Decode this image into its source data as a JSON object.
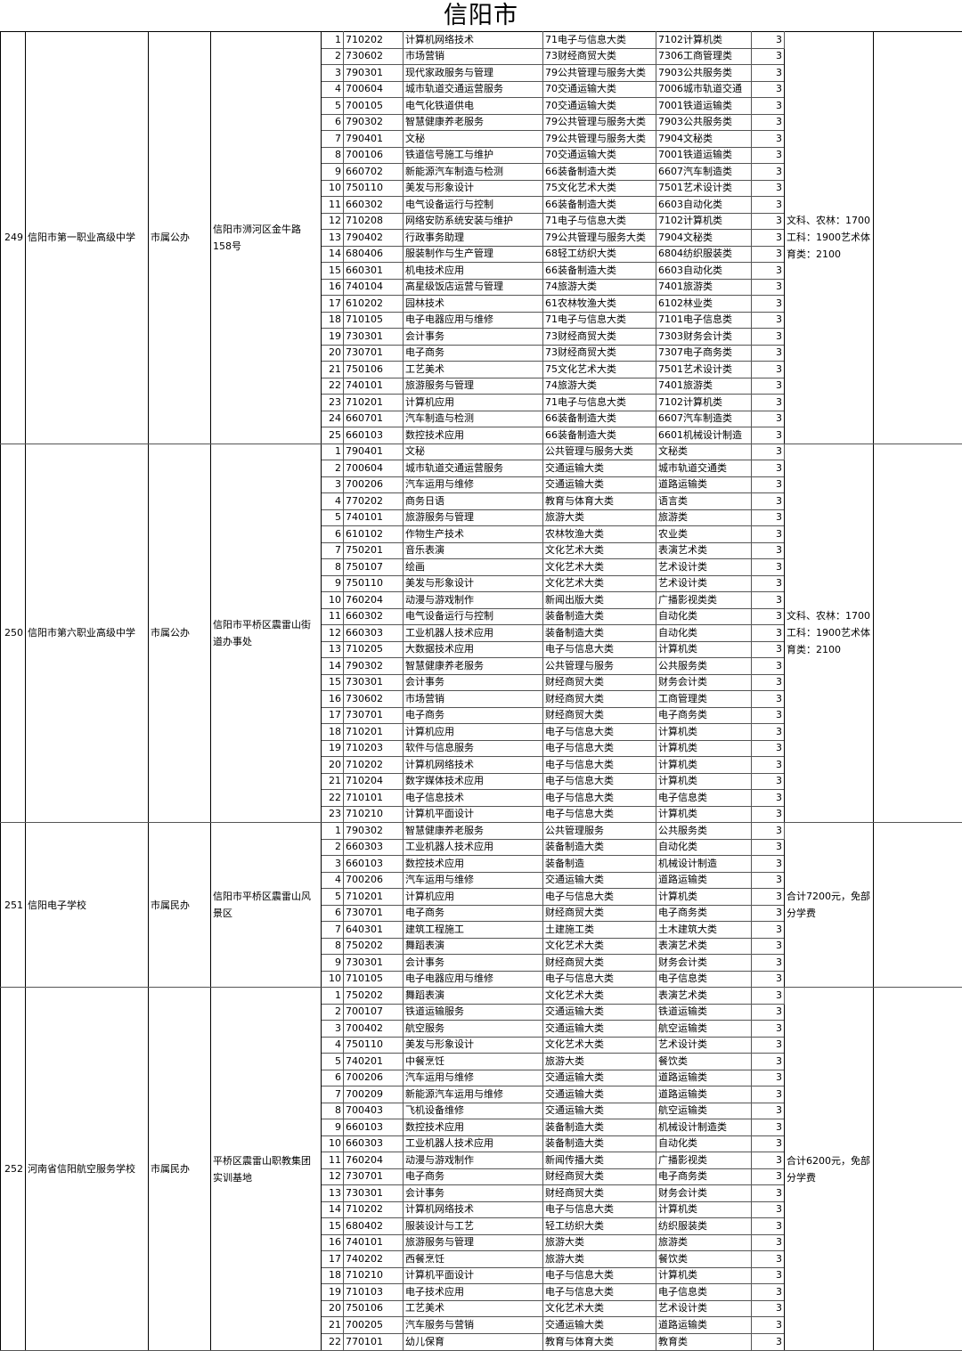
{
  "title": "信阳市",
  "schools": [
    {
      "no": "249",
      "name": "信阳市第一职业高级中学",
      "type": "市属公办",
      "address": "信阳市浉河区金牛路158号",
      "fee": "文科、农林：1700工科：1900艺术体育类：2100",
      "majors": [
        [
          "710202",
          "计算机网络技术",
          "71电子与信息大类",
          "7102计算机类",
          "3"
        ],
        [
          "730602",
          "市场营销",
          "73财经商贸大类",
          "7306工商管理类",
          "3"
        ],
        [
          "790301",
          "现代家政服务与管理",
          "79公共管理与服务大类",
          "7903公共服务类",
          "3"
        ],
        [
          "700604",
          "城市轨道交通运营服务",
          "70交通运输大类",
          "7006城市轨道交通",
          "3"
        ],
        [
          "700105",
          "电气化铁道供电",
          "70交通运输大类",
          "7001铁道运输类",
          "3"
        ],
        [
          "790302",
          "智慧健康养老服务",
          "79公共管理与服务大类",
          "7903公共服务类",
          "3"
        ],
        [
          "790401",
          "文秘",
          "79公共管理与服务大类",
          "7904文秘类",
          "3"
        ],
        [
          "700106",
          "铁道信号施工与维护",
          "70交通运输大类",
          "7001铁道运输类",
          "3"
        ],
        [
          "660702",
          "新能源汽车制造与检测",
          "66装备制造大类",
          "6607汽车制造类",
          "3"
        ],
        [
          "750110",
          "美发与形象设计",
          "75文化艺术大类",
          "7501艺术设计类",
          "3"
        ],
        [
          "660302",
          "电气设备运行与控制",
          "66装备制造大类",
          "6603自动化类",
          "3"
        ],
        [
          "710208",
          "网络安防系统安装与维护",
          "71电子与信息大类",
          "7102计算机类",
          "3"
        ],
        [
          "790402",
          "行政事务助理",
          "79公共管理与服务大类",
          "7904文秘类",
          "3"
        ],
        [
          "680406",
          "服装制作与生产管理",
          "68轻工纺织大类",
          "6804纺织服装类",
          "3"
        ],
        [
          "660301",
          "机电技术应用",
          "66装备制造大类",
          "6603自动化类",
          "3"
        ],
        [
          "740104",
          "高星级饭店运营与管理",
          "74旅游大类",
          "7401旅游类",
          "3"
        ],
        [
          "610202",
          "园林技术",
          "61农林牧渔大类",
          "6102林业类",
          "3"
        ],
        [
          "710105",
          "电子电器应用与维修",
          "71电子与信息大类",
          "7101电子信息类",
          "3"
        ],
        [
          "730301",
          "会计事务",
          "73财经商贸大类",
          "7303财务会计类",
          "3"
        ],
        [
          "730701",
          "电子商务",
          "73财经商贸大类",
          "7307电子商务类",
          "3"
        ],
        [
          "750106",
          "工艺美术",
          "75文化艺术大类",
          "7501艺术设计类",
          "3"
        ],
        [
          "740101",
          "旅游服务与管理",
          "74旅游大类",
          "7401旅游类",
          "3"
        ],
        [
          "710201",
          "计算机应用",
          "71电子与信息大类",
          "7102计算机类",
          "3"
        ],
        [
          "660701",
          "汽车制造与检测",
          "66装备制造大类",
          "6607汽车制造类",
          "3"
        ],
        [
          "660103",
          "数控技术应用",
          "66装备制造大类",
          "6601机械设计制造",
          "3"
        ]
      ]
    },
    {
      "no": "250",
      "name": "信阳市第六职业高级中学",
      "type": "市属公办",
      "address": "信阳市平桥区震雷山街道办事处",
      "fee": "文科、农林：1700工科：1900艺术体育类：2100",
      "majors": [
        [
          "790401",
          "文秘",
          "公共管理与服务大类",
          "文秘类",
          "3"
        ],
        [
          "700604",
          "城市轨道交通运营服务",
          "交通运输大类",
          "城市轨道交通类",
          "3"
        ],
        [
          "700206",
          "汽车运用与维修",
          "交通运输大类",
          "道路运输类",
          "3"
        ],
        [
          "770202",
          "商务日语",
          "教育与体育大类",
          "语言类",
          "3"
        ],
        [
          "740101",
          "旅游服务与管理",
          "旅游大类",
          "旅游类",
          "3"
        ],
        [
          "610102",
          "作物生产技术",
          "农林牧渔大类",
          "农业类",
          "3"
        ],
        [
          "750201",
          "音乐表演",
          "文化艺术大类",
          "表演艺术类",
          "3"
        ],
        [
          "750107",
          "绘画",
          "文化艺术大类",
          "艺术设计类",
          "3"
        ],
        [
          "750110",
          "美发与形象设计",
          "文化艺术大类",
          "艺术设计类",
          "3"
        ],
        [
          "760204",
          "动漫与游戏制作",
          "新闻出版大类",
          "广播影视类类",
          "3"
        ],
        [
          "660302",
          "电气设备运行与控制",
          "装备制造大类",
          "自动化类",
          "3"
        ],
        [
          "660303",
          "工业机器人技术应用",
          "装备制造大类",
          "自动化类",
          "3"
        ],
        [
          "710205",
          "大数据技术应用",
          "电子与信息大类",
          "计算机类",
          "3"
        ],
        [
          "790302",
          "智慧健康养老服务",
          "公共管理与服务",
          "公共服务类",
          "3"
        ],
        [
          "730301",
          "会计事务",
          "财经商贸大类",
          "财务会计类",
          "3"
        ],
        [
          "730602",
          "市场营销",
          "财经商贸大类",
          "工商管理类",
          "3"
        ],
        [
          "730701",
          "电子商务",
          "财经商贸大类",
          "电子商务类",
          "3"
        ],
        [
          "710201",
          "计算机应用",
          "电子与信息大类",
          "计算机类",
          "3"
        ],
        [
          "710203",
          "软件与信息服务",
          "电子与信息大类",
          "计算机类",
          "3"
        ],
        [
          "710202",
          "计算机网络技术",
          "电子与信息大类",
          "计算机类",
          "3"
        ],
        [
          "710204",
          "数字媒体技术应用",
          "电子与信息大类",
          "计算机类",
          "3"
        ],
        [
          "710101",
          "电子信息技术",
          "电子与信息大类",
          "电子信息类",
          "3"
        ],
        [
          "710210",
          "计算机平面设计",
          "电子与信息大类",
          "计算机类",
          "3"
        ]
      ]
    },
    {
      "no": "251",
      "name": "信阳电子学校",
      "type": "市属民办",
      "address": "信阳市平桥区震雷山风景区",
      "fee": "合计7200元，免部分学费",
      "majors": [
        [
          "790302",
          "智慧健康养老服务",
          "公共管理服务",
          "公共服务类",
          "3"
        ],
        [
          "660303",
          "工业机器人技术应用",
          "装备制造大类",
          "自动化类",
          "3"
        ],
        [
          "660103",
          "数控技术应用",
          "装备制造",
          "机械设计制造",
          "3"
        ],
        [
          "700206",
          "汽车运用与维修",
          "交通运输大类",
          "道路运输类",
          "3"
        ],
        [
          "710201",
          "计算机应用",
          "电子与信息大类",
          "计算机类",
          "3"
        ],
        [
          "730701",
          "电子商务",
          "财经商贸大类",
          "电子商务类",
          "3"
        ],
        [
          "640301",
          "建筑工程施工",
          "土建施工类",
          "土木建筑大类",
          "3"
        ],
        [
          "750202",
          "舞蹈表演",
          "文化艺术大类",
          "表演艺术类",
          "3"
        ],
        [
          "730301",
          "会计事务",
          "财经商贸大类",
          "财务会计类",
          "3"
        ],
        [
          "710105",
          "电子电器应用与维修",
          "电子与信息大类",
          "电子信息类",
          "3"
        ]
      ]
    },
    {
      "no": "252",
      "name": "河南省信阳航空服务学校",
      "type": "市属民办",
      "address": "平桥区震雷山职教集团实训基地",
      "fee": "合计6200元，免部分学费",
      "majors": [
        [
          "750202",
          "舞蹈表演",
          "文化艺术大类",
          "表演艺术类",
          "3"
        ],
        [
          "700107",
          "铁道运输服务",
          "交通运输大类",
          "铁道运输类",
          "3"
        ],
        [
          "700402",
          "航空服务",
          "交通运输大类",
          "航空运输类",
          "3"
        ],
        [
          "750110",
          "美发与形象设计",
          "文化艺术大类",
          "艺术设计类",
          "3"
        ],
        [
          "740201",
          "中餐烹饪",
          "旅游大类",
          "餐饮类",
          "3"
        ],
        [
          "700206",
          "汽车运用与维修",
          "交通运输大类",
          "道路运输类",
          "3"
        ],
        [
          "700209",
          "新能源汽车运用与维修",
          "交通运输大类",
          "道路运输类",
          "3"
        ],
        [
          "700403",
          "飞机设备维修",
          "交通运输大类",
          "航空运输类",
          "3"
        ],
        [
          "660103",
          "数控技术应用",
          "装备制造大类",
          "机械设计制造类",
          "3"
        ],
        [
          "660303",
          "工业机器人技术应用",
          "装备制造大类",
          "自动化类",
          "3"
        ],
        [
          "760204",
          "动漫与游戏制作",
          "新闻传播大类",
          "广播影视类",
          "3"
        ],
        [
          "730701",
          "电子商务",
          "财经商贸大类",
          "电子商务类",
          "3"
        ],
        [
          "730301",
          "会计事务",
          "财经商贸大类",
          "财务会计类",
          "3"
        ],
        [
          "710202",
          "计算机网络技术",
          "电子与信息大类",
          "计算机类",
          "3"
        ],
        [
          "680402",
          "服装设计与工艺",
          "轻工纺织大类",
          "纺织服装类",
          "3"
        ],
        [
          "740101",
          "旅游服务与管理",
          "旅游大类",
          "旅游类",
          "3"
        ],
        [
          "740202",
          "西餐烹饪",
          "旅游大类",
          "餐饮类",
          "3"
        ],
        [
          "710210",
          "计算机平面设计",
          "电子与信息大类",
          "计算机类",
          "3"
        ],
        [
          "710103",
          "电子技术应用",
          "电子与信息大类",
          "电子信息类",
          "3"
        ],
        [
          "750106",
          "工艺美术",
          "文化艺术大类",
          "艺术设计类",
          "3"
        ],
        [
          "700205",
          "汽车服务与营销",
          "交通运输大类",
          "道路运输类",
          "3"
        ],
        [
          "770101",
          "幼儿保育",
          "教育与体育大类",
          "教育类",
          "3"
        ]
      ]
    }
  ]
}
